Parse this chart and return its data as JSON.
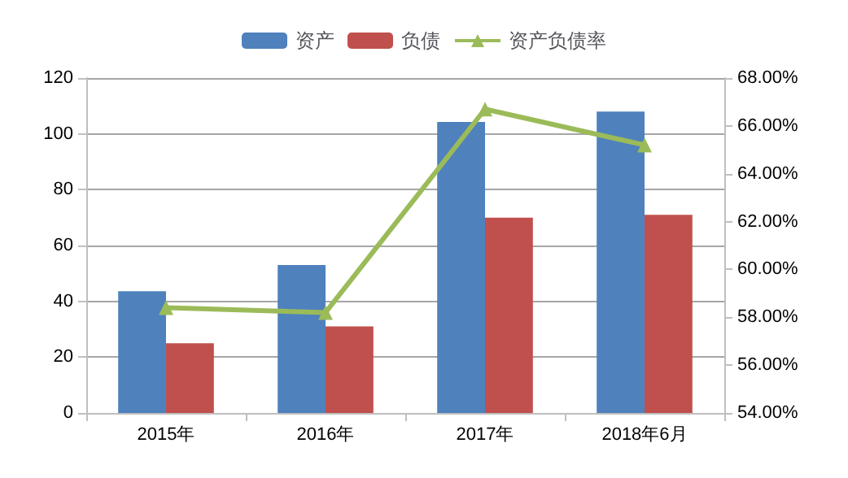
{
  "chart_data": {
    "type": "bar",
    "categories": [
      "2015年",
      "2016年",
      "2017年",
      "2018年6月"
    ],
    "series": [
      {
        "name": "资产",
        "color": "#4f81bd",
        "values": [
          43.6,
          53,
          104.3,
          108
        ]
      },
      {
        "name": "负债",
        "color": "#c0504d",
        "values": [
          25,
          31,
          70,
          71
        ]
      },
      {
        "name": "资产负债率",
        "type": "line",
        "axis": "y2",
        "color": "#9bbb59",
        "values": [
          58.4,
          58.2,
          66.7,
          65.2
        ]
      }
    ],
    "ylim": [
      0,
      120
    ],
    "yticks": [
      0,
      20,
      40,
      60,
      80,
      100,
      120
    ],
    "y2lim": [
      54,
      68
    ],
    "y2ticks": [
      {
        "value": 54,
        "label": "54.00%"
      },
      {
        "value": 56,
        "label": "56.00%"
      },
      {
        "value": 58,
        "label": "58.00%"
      },
      {
        "value": 60,
        "label": "60.00%"
      },
      {
        "value": 62,
        "label": "62.00%"
      },
      {
        "value": 64,
        "label": "64.00%"
      },
      {
        "value": 66,
        "label": "66.00%"
      },
      {
        "value": 68,
        "label": "68.00%"
      }
    ],
    "grid": "y",
    "legend": "top",
    "marker": "triangle"
  }
}
